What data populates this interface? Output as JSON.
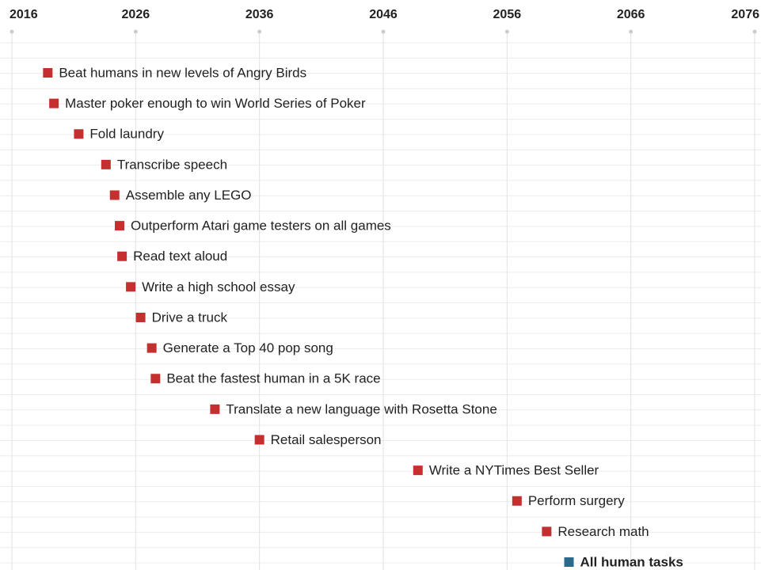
{
  "chart_data": {
    "type": "scatter",
    "categories": [
      "Beat humans in new levels of Angry Birds",
      "Master poker enough to win World Series of Poker",
      "Fold laundry",
      "Transcribe speech",
      "Assemble any LEGO",
      "Outperform Atari game testers on all games",
      "Read text aloud",
      "Write a high school essay",
      "Drive a truck",
      "Generate a Top 40 pop song",
      "Beat the fastest human in a 5K race",
      "Translate a new language with Rosetta Stone",
      "Retail salesperson",
      "Write a NYTimes Best Seller",
      "Perform surgery",
      "Research math",
      "All human tasks"
    ],
    "values": [
      2018.9,
      2019.4,
      2021.4,
      2023.6,
      2024.3,
      2024.7,
      2024.9,
      2025.6,
      2026.4,
      2027.3,
      2027.6,
      2032.4,
      2036.0,
      2048.8,
      2056.8,
      2059.2,
      2061.0
    ],
    "colors": [
      "#c62f2f",
      "#c62f2f",
      "#c62f2f",
      "#c62f2f",
      "#c62f2f",
      "#c62f2f",
      "#c62f2f",
      "#c62f2f",
      "#c62f2f",
      "#c62f2f",
      "#c62f2f",
      "#c62f2f",
      "#c62f2f",
      "#c62f2f",
      "#c62f2f",
      "#c62f2f",
      "#2b6a8c"
    ],
    "xlim": [
      2016,
      2076
    ],
    "xticks": [
      2016,
      2026,
      2036,
      2046,
      2056,
      2066,
      2076
    ],
    "grid": true
  }
}
